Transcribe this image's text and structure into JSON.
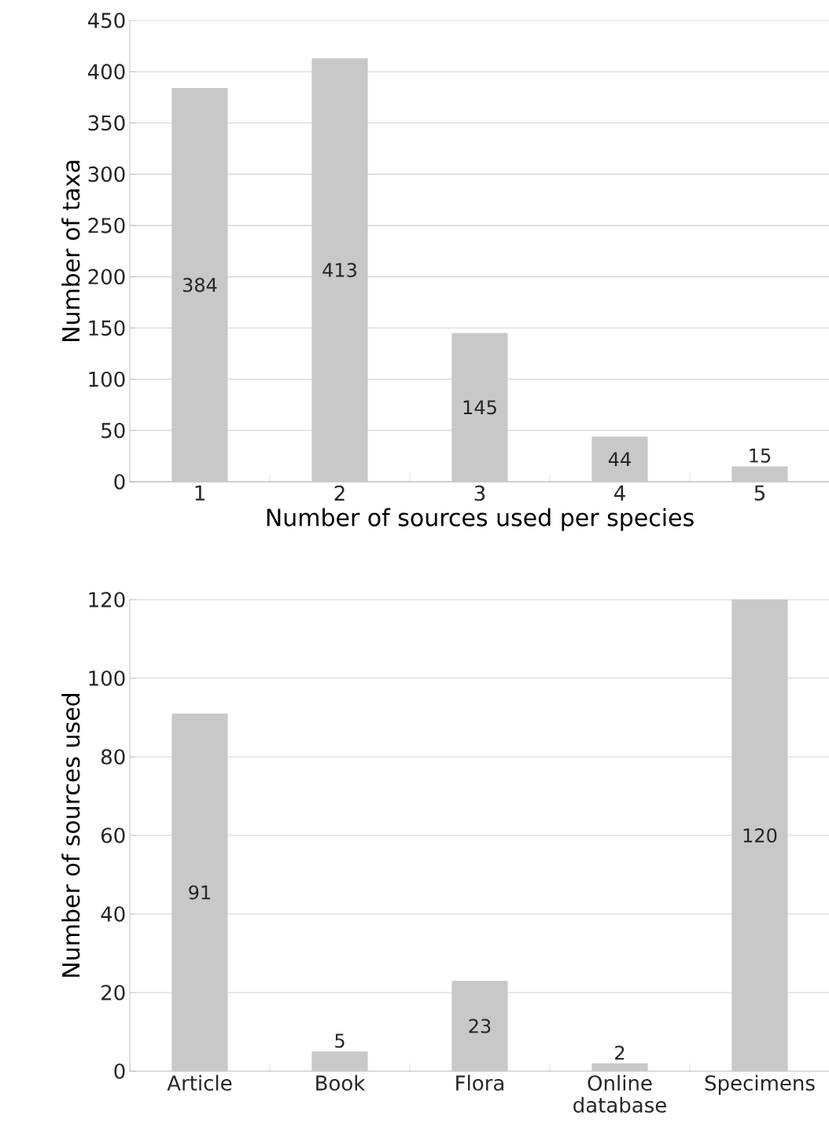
{
  "chart_data": [
    {
      "type": "bar",
      "xlabel": "Number of sources used per species",
      "ylabel": "Number of taxa",
      "categories": [
        "1",
        "2",
        "3",
        "4",
        "5"
      ],
      "values": [
        384,
        413,
        145,
        44,
        15
      ],
      "color": "#c8c8c8",
      "ylim": [
        0,
        450
      ],
      "yticks": [
        0,
        50,
        100,
        150,
        200,
        250,
        300,
        350,
        400,
        450
      ],
      "grid": "y",
      "data_labels": true
    },
    {
      "type": "bar",
      "ylabel": "Number of sources used",
      "categories": [
        "Article",
        "Book",
        "Flora",
        "Online database",
        "Specimens"
      ],
      "values": [
        91,
        5,
        23,
        2,
        120
      ],
      "color": "#c8c8c8",
      "ylim": [
        0,
        120
      ],
      "yticks": [
        0,
        20,
        40,
        60,
        80,
        100,
        120
      ],
      "grid": "y",
      "data_labels": true
    }
  ]
}
